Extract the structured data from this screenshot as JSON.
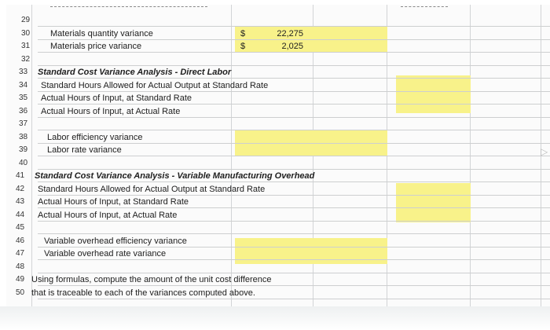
{
  "rows": [
    {
      "n": "29",
      "a": "",
      "b": "",
      "c": ""
    },
    {
      "n": "30",
      "a": "Materials quantity variance",
      "b": "$",
      "c": "22,275"
    },
    {
      "n": "31",
      "a": "Materials price variance",
      "b": "$",
      "c": "2,025"
    },
    {
      "n": "32",
      "a": "",
      "b": "",
      "c": ""
    },
    {
      "n": "33",
      "a": "Standard Cost Variance Analysis - Direct Labor",
      "b": "",
      "c": ""
    },
    {
      "n": "34",
      "a": "Standard Hours Allowed for Actual Output at Standard Rate",
      "b": "",
      "c": ""
    },
    {
      "n": "35",
      "a": "Actual Hours of Input, at Standard Rate",
      "b": "",
      "c": ""
    },
    {
      "n": "36",
      "a": "Actual Hours of Input, at Actual Rate",
      "b": "",
      "c": ""
    },
    {
      "n": "37",
      "a": "",
      "b": "",
      "c": ""
    },
    {
      "n": "38",
      "a": "Labor efficiency variance",
      "b": "",
      "c": ""
    },
    {
      "n": "39",
      "a": "Labor rate variance",
      "b": "",
      "c": ""
    },
    {
      "n": "40",
      "a": "",
      "b": "",
      "c": ""
    },
    {
      "n": "41",
      "a": "Standard Cost Variance Analysis - Variable Manufacturing Overhead",
      "b": "",
      "c": ""
    },
    {
      "n": "42",
      "a": "Standard Hours Allowed for Actual Output at Standard Rate",
      "b": "",
      "c": ""
    },
    {
      "n": "43",
      "a": "Actual Hours of Input, at Standard Rate",
      "b": "",
      "c": ""
    },
    {
      "n": "44",
      "a": "Actual Hours of Input, at Actual Rate",
      "b": "",
      "c": ""
    },
    {
      "n": "45",
      "a": "",
      "b": "",
      "c": ""
    },
    {
      "n": "46",
      "a": "Variable overhead efficiency variance",
      "b": "",
      "c": ""
    },
    {
      "n": "47",
      "a": "Variable overhead rate variance",
      "b": "",
      "c": ""
    },
    {
      "n": "48",
      "a": "",
      "b": "",
      "c": ""
    },
    {
      "n": "49",
      "a": "Using formulas, compute the amount of the unit cost difference",
      "b": "",
      "c": ""
    },
    {
      "n": "50",
      "a": "that is traceable to each of the variances computed above.",
      "b": "",
      "c": ""
    }
  ],
  "colors": {
    "highlight": "#f8f28a",
    "grid": "#cdcfd0"
  }
}
